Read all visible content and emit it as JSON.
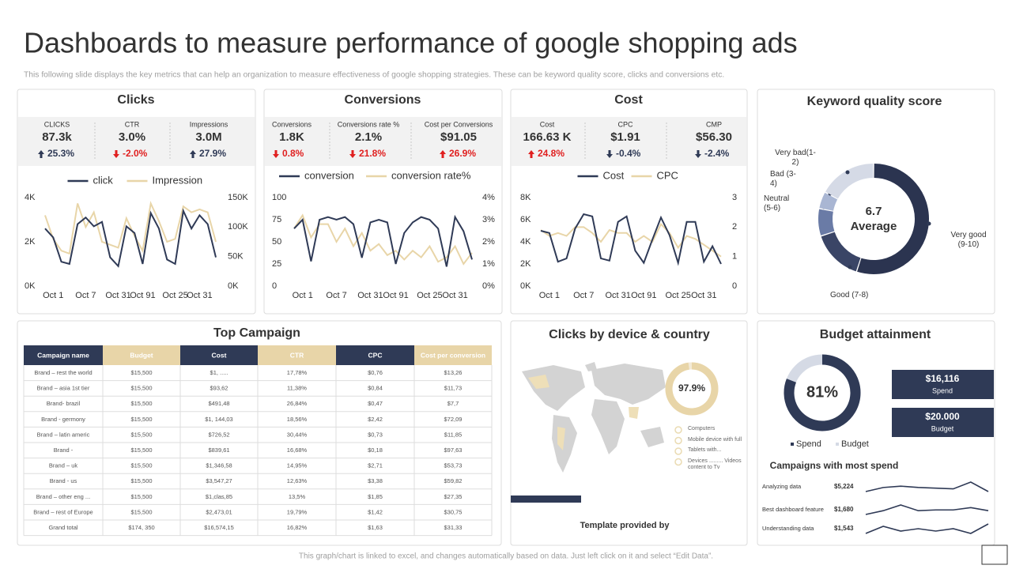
{
  "header": {
    "title": "Dashboards to measure performance of google shopping ads",
    "subtitle": "This following slide displays the key metrics that can help an organization to measure effectiveness of google shopping strategies. These can be keyword quality score, clicks and conversions etc."
  },
  "footer": "This graph/chart is linked to excel, and changes automatically based on data. Just left click on it and select “Edit Data”.",
  "kpi_panels": [
    {
      "title": "Clicks",
      "kpis": [
        {
          "label": "CLICKS",
          "value": "87.3k",
          "change": "25.3%",
          "direction": "up",
          "color": "#2f3a56"
        },
        {
          "label": "CTR",
          "value": "3.0%",
          "change": "-2.0%",
          "direction": "down",
          "color": "#e02020"
        },
        {
          "label": "Impressions",
          "value": "3.0M",
          "change": "27.9%",
          "direction": "up",
          "color": "#2f3a56"
        }
      ]
    },
    {
      "title": "Conversions",
      "kpis": [
        {
          "label": "Conversions",
          "value": "1.8K",
          "change": "0.8%",
          "direction": "down",
          "color": "#e02020"
        },
        {
          "label": "Conversions rate %",
          "value": "2.1%",
          "change": "21.8%",
          "direction": "down",
          "color": "#e02020"
        },
        {
          "label": "Cost per Conversions",
          "value": "$91.05",
          "change": "26.9%",
          "direction": "up",
          "color": "#e02020"
        }
      ]
    },
    {
      "title": "Cost",
      "kpis": [
        {
          "label": "Cost",
          "value": "166.63 K",
          "change": "24.8%",
          "direction": "up",
          "color": "#e02020"
        },
        {
          "label": "CPC",
          "value": "$1.91",
          "change": "-0.4%",
          "direction": "down",
          "color": "#2f3a56"
        },
        {
          "label": "CMP",
          "value": "$56.30",
          "change": "-2.4%",
          "direction": "down",
          "color": "#2f3a56"
        }
      ]
    }
  ],
  "chart_data": [
    {
      "type": "line",
      "categories": [
        null,
        "Oct 1",
        null,
        null,
        null,
        "Oct 7",
        null,
        null,
        null,
        "Oct 31",
        null,
        null,
        "Oct 91",
        null,
        null,
        null,
        "Oct 25",
        null,
        null,
        "Oct 31",
        null,
        null
      ],
      "series": [
        {
          "name": "click",
          "color": "#2f3a56",
          "values": [
            2600,
            2200,
            1100,
            1000,
            2800,
            3100,
            2700,
            2900,
            1300,
            900,
            2700,
            2400,
            1000,
            3300,
            2600,
            1200,
            1000,
            3400,
            2600,
            3200,
            2800,
            1300
          ]
        },
        {
          "name": "Impression",
          "color": "#e8d5a8",
          "axis": "y2",
          "values": [
            120000,
            80000,
            60000,
            55000,
            140000,
            100000,
            125000,
            75000,
            70000,
            65000,
            115000,
            85000,
            60000,
            140000,
            110000,
            75000,
            80000,
            135000,
            125000,
            130000,
            125000,
            75000
          ]
        }
      ],
      "ylim": [
        0,
        4000
      ],
      "yticks": [
        {
          "value": 0,
          "label": "0K"
        },
        {
          "value": 2000,
          "label": "2K"
        },
        {
          "value": 4000,
          "label": "4K"
        }
      ],
      "y2lim": [
        0,
        150000
      ],
      "y2ticks": [
        {
          "value": 0,
          "label": "0K"
        },
        {
          "value": 50000,
          "label": "50K"
        },
        {
          "value": 100000,
          "label": "100K"
        },
        {
          "value": 150000,
          "label": "150K"
        }
      ]
    },
    {
      "type": "line",
      "categories": [
        null,
        "Oct 1",
        null,
        null,
        null,
        "Oct 7",
        null,
        null,
        null,
        "Oct 31",
        null,
        null,
        "Oct 91",
        null,
        null,
        null,
        "Oct 25",
        null,
        null,
        "Oct 31",
        null,
        null
      ],
      "series": [
        {
          "name": "conversion",
          "color": "#2f3a56",
          "values": [
            65,
            75,
            28,
            75,
            78,
            75,
            78,
            70,
            32,
            72,
            75,
            72,
            25,
            60,
            72,
            78,
            75,
            65,
            22,
            78,
            62,
            30
          ]
        },
        {
          "name": "conversion rate%",
          "color": "#e8d5a8",
          "axis": "y2",
          "values": [
            2.6,
            3.2,
            2.2,
            2.8,
            2.8,
            2.0,
            2.6,
            1.8,
            2.4,
            1.6,
            1.9,
            1.4,
            1.6,
            1.2,
            1.6,
            1.3,
            1.8,
            1.1,
            1.3,
            1.8,
            1.0,
            1.5
          ]
        }
      ],
      "ylim": [
        0,
        100
      ],
      "yticks": [
        0,
        25,
        50,
        75,
        100
      ],
      "y2lim": [
        0,
        4
      ],
      "y2ticks": [
        {
          "value": 0,
          "label": "0%"
        },
        {
          "value": 1,
          "label": "1%"
        },
        {
          "value": 2,
          "label": "2%"
        },
        {
          "value": 3,
          "label": "3%"
        },
        {
          "value": 4,
          "label": "4%"
        }
      ]
    },
    {
      "type": "line",
      "categories": [
        null,
        "Oct 1",
        null,
        null,
        null,
        "Oct 7",
        null,
        null,
        null,
        "Oct 31",
        null,
        null,
        "Oct 91",
        null,
        null,
        null,
        "Oct 25",
        null,
        null,
        "Oct 31",
        null,
        null
      ],
      "series": [
        {
          "name": "Cost",
          "color": "#2f3a56",
          "values": [
            5000,
            4800,
            2200,
            2500,
            5200,
            6500,
            6300,
            2500,
            2300,
            5800,
            6300,
            3200,
            2100,
            4200,
            6200,
            4600,
            2100,
            5800,
            5800,
            2200,
            3600,
            2000
          ]
        },
        {
          "name": "CPC",
          "color": "#e8d5a8",
          "axis": "y2",
          "values": [
            1.9,
            1.7,
            1.8,
            1.7,
            2.0,
            2.0,
            1.8,
            1.5,
            1.9,
            1.8,
            1.8,
            1.5,
            1.7,
            1.5,
            2.1,
            1.8,
            1.3,
            1.7,
            1.6,
            1.4,
            1.2,
            1.0
          ]
        }
      ],
      "ylim": [
        0,
        8000
      ],
      "yticks": [
        {
          "value": 0,
          "label": "0K"
        },
        {
          "value": 2000,
          "label": "2K"
        },
        {
          "value": 4000,
          "label": "4K"
        },
        {
          "value": 6000,
          "label": "6K"
        },
        {
          "value": 8000,
          "label": "8K"
        }
      ],
      "y2lim": [
        0,
        3
      ],
      "y2ticks": [
        0,
        1,
        2,
        3
      ]
    },
    {
      "type": "pie",
      "title": "Keyword quality score",
      "center_value": 6.7,
      "center_label": "Average",
      "categories": [
        "Very good (9-10)",
        "Good (7-8)",
        "Neutral (5-6)",
        "Bad (3-4)",
        "Very bad(1-2)"
      ],
      "values": [
        55,
        15,
        8,
        5,
        17
      ],
      "colors": [
        "#2b3450",
        "#3a4566",
        "#6a7ba6",
        "#a9b6d3",
        "#d5dae6"
      ]
    },
    {
      "type": "donut",
      "values": [
        97.9
      ],
      "value_labels": [
        "97.9%"
      ],
      "colors": [
        "#e8d5a8",
        "#f3ead6"
      ]
    },
    {
      "type": "donut",
      "values": [
        81
      ],
      "value_labels": [
        "81%"
      ],
      "colors": [
        "#2f3a56",
        "#d5dae5"
      ],
      "legend": [
        "Spend",
        "Budget"
      ]
    },
    {
      "type": "sparkline",
      "color": "#2f3a56",
      "values": [
        5.0,
        5.3,
        5.4,
        5.3,
        5.25,
        5.2,
        5.7,
        5.0
      ]
    },
    {
      "type": "sparkline",
      "color": "#2f3a56",
      "values": [
        1.5,
        1.6,
        1.75,
        1.6,
        1.62,
        1.62,
        1.68,
        1.6
      ]
    },
    {
      "type": "sparkline",
      "color": "#2f3a56",
      "values": [
        1.45,
        1.6,
        1.5,
        1.55,
        1.5,
        1.55,
        1.45,
        1.65
      ]
    }
  ],
  "table": {
    "title": "Top Campaign",
    "columns": [
      "Campaign name",
      "Budget",
      "Cost",
      "CTR",
      "CPC",
      "Cost per conversion"
    ],
    "rows": [
      [
        "Brand – rest the world",
        "$15,500",
        "$1, .....",
        "17,78%",
        "$0,76",
        "$13,26"
      ],
      [
        "Brand – asia 1st tier",
        "$15,500",
        "$93,62",
        "11,38%",
        "$0,84",
        "$11,73"
      ],
      [
        "Brand- brazil",
        "$15,500",
        "$491,48",
        "26,84%",
        "$0,47",
        "$7,7"
      ],
      [
        "Brand - germony",
        "$15,500",
        "$1, 144,03",
        "18,56%",
        "$2,42",
        "$72,09"
      ],
      [
        "Brand – latin americ",
        "$15,500",
        "$726,52",
        "30,44%",
        "$0,73",
        "$11,85"
      ],
      [
        "Brand -",
        "$15,500",
        "$839,61",
        "16,68%",
        "$0,18",
        "$97,63"
      ],
      [
        "Brand – uk",
        "$15,500",
        "$1,346,58",
        "14,95%",
        "$2,71",
        "$53,73"
      ],
      [
        "Brand - us",
        "$15,500",
        "$3,547,27",
        "12,63%",
        "$3,38",
        "$59,82"
      ],
      [
        "Brand – other eng ...",
        "$15,500",
        "$1,clas,85",
        "13,5%",
        "$1,85",
        "$27,35"
      ],
      [
        "Brand – rest of Europe",
        "$15,500",
        "$2,473,01",
        "19,79%",
        "$1,42",
        "$30,75"
      ],
      [
        "Grand total",
        "$174, 350",
        "$16,574,15",
        "16,82%",
        "$1,63",
        "$31,33"
      ]
    ]
  },
  "device": {
    "title": "Clicks by device & country",
    "legend": [
      "Computers",
      "Mobile device with full",
      "Tablets with...",
      "Devices ......... Videos content to Tv"
    ],
    "footer": "Template provided by"
  },
  "budget": {
    "title": "Budget attainment",
    "boxes": [
      {
        "value": "$16,116",
        "label": "Spend"
      },
      {
        "value": "$20.000",
        "label": "Budget"
      }
    ],
    "campaigns_title": "Campaigns with most spend",
    "campaigns": [
      {
        "name": "Analyzing data",
        "value": "$5,224"
      },
      {
        "name": "Best dashboard feature",
        "value": "$1,680"
      },
      {
        "name": "Understanding data",
        "value": "$1,543"
      }
    ]
  }
}
